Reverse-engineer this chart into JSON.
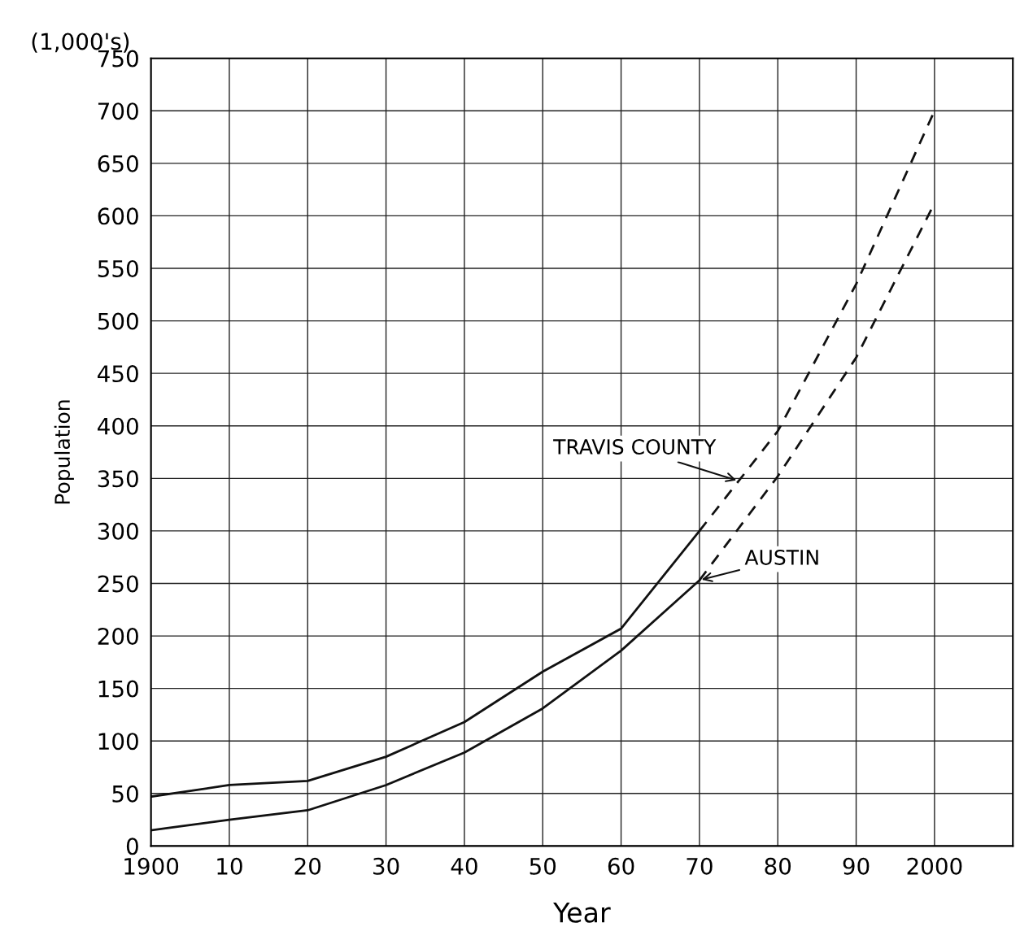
{
  "chart_data": {
    "type": "line",
    "xlabel": "Year",
    "ylabel": "Population",
    "series": [
      {
        "color": "#111111",
        "line_style": "solid",
        "x": [
          1900,
          1910,
          1920,
          1930,
          1940,
          1950,
          1960,
          1970
        ],
        "values": [
          47,
          58,
          62,
          85,
          118,
          166,
          207,
          300
        ]
      },
      {
        "color": "#111111",
        "line_style": "dashed",
        "x": [
          1970,
          1980,
          1990,
          2000
        ],
        "values": [
          300,
          395,
          535,
          700
        ]
      },
      {
        "color": "#111111",
        "line_style": "solid",
        "x": [
          1900,
          1910,
          1920,
          1930,
          1940,
          1950,
          1960,
          1970
        ],
        "values": [
          15,
          25,
          34,
          58,
          89,
          131,
          186,
          253
        ]
      },
      {
        "color": "#111111",
        "line_style": "dashed",
        "x": [
          1970,
          1980,
          1990,
          2000
        ],
        "values": [
          253,
          352,
          465,
          612
        ]
      }
    ],
    "annotations": [
      "(1,000's)",
      {
        "text": "TRAVIS COUNTY",
        "x": 1975,
        "y": 347.5
      },
      {
        "text": "AUSTIN",
        "x": 1970,
        "y": 253
      }
    ],
    "xlim": [
      1900,
      2010
    ],
    "xticks": [
      1900,
      {
        "value": 1910,
        "label": "10"
      },
      {
        "value": 1920,
        "label": "20"
      },
      {
        "value": 1930,
        "label": "30"
      },
      {
        "value": 1940,
        "label": "40"
      },
      {
        "value": 1950,
        "label": "50"
      },
      {
        "value": 1960,
        "label": "60"
      },
      {
        "value": 1970,
        "label": "70"
      },
      {
        "value": 1980,
        "label": "80"
      },
      {
        "value": 1990,
        "label": "90"
      },
      {
        "value": 2000,
        "label": "2000"
      }
    ],
    "ylim": [
      0,
      750
    ],
    "yticks": [
      0,
      50,
      100,
      150,
      200,
      250,
      300,
      350,
      400,
      450,
      500,
      550,
      600,
      650,
      700,
      750
    ],
    "grid": true,
    "marker": "none"
  }
}
